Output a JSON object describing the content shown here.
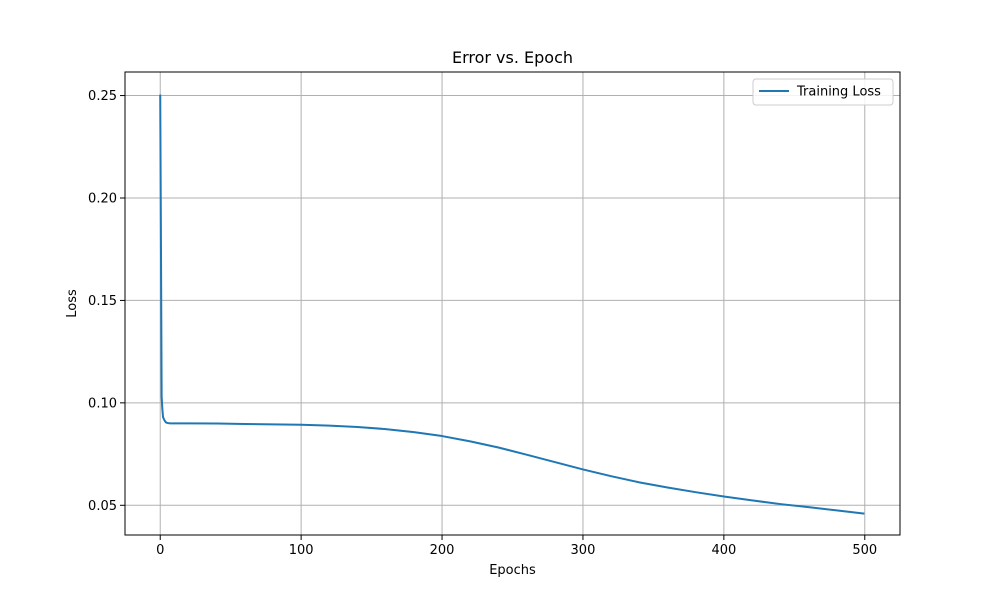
{
  "chart_data": {
    "type": "line",
    "title": "Error vs. Epoch",
    "xlabel": "Epochs",
    "ylabel": "Loss",
    "xlim": [
      -25,
      525
    ],
    "ylim": [
      0.0355,
      0.2615
    ],
    "xticks": [
      0,
      100,
      200,
      300,
      400,
      500
    ],
    "xtick_labels": [
      "0",
      "100",
      "200",
      "300",
      "400",
      "500"
    ],
    "yticks": [
      0.05,
      0.1,
      0.15,
      0.2,
      0.25
    ],
    "ytick_labels": [
      "0.05",
      "0.10",
      "0.15",
      "0.20",
      "0.25"
    ],
    "grid": true,
    "legend_position": "top-right",
    "series": [
      {
        "name": "Training Loss",
        "color": "#1f77b4",
        "x": [
          0,
          0.5,
          1,
          1.5,
          2,
          3,
          4,
          5,
          7,
          10,
          20,
          40,
          60,
          80,
          100,
          120,
          140,
          160,
          180,
          200,
          220,
          240,
          260,
          280,
          300,
          320,
          340,
          360,
          380,
          400,
          420,
          440,
          460,
          480,
          499
        ],
        "y": [
          0.25,
          0.18,
          0.103,
          0.097,
          0.093,
          0.0915,
          0.0905,
          0.0902,
          0.09,
          0.09,
          0.09,
          0.0899,
          0.0897,
          0.0895,
          0.0893,
          0.0889,
          0.0882,
          0.0872,
          0.0857,
          0.0838,
          0.0812,
          0.0782,
          0.0747,
          0.0711,
          0.0675,
          0.0642,
          0.0612,
          0.0587,
          0.0564,
          0.0543,
          0.0524,
          0.0506,
          0.0491,
          0.0475,
          0.046
        ]
      }
    ]
  }
}
